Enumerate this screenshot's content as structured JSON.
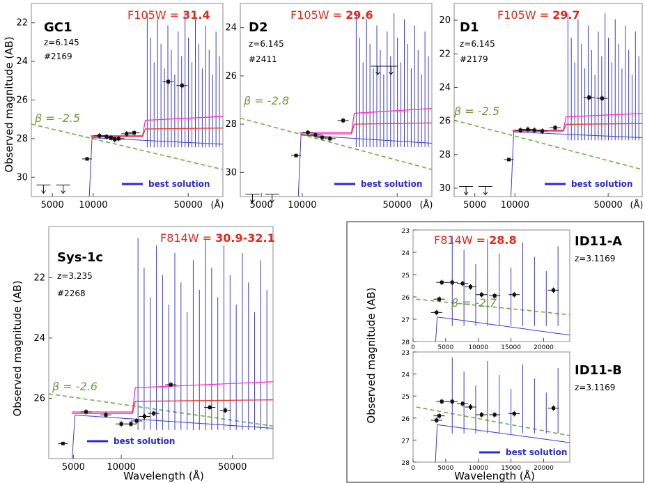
{
  "figure": {
    "ylabel": "Observed magnitude (AB)",
    "xlabel": "Wavelength (Å)",
    "legend_label": "best solution",
    "colors": {
      "model": "#3a3ad0",
      "magenta": "#ff2ad0",
      "red": "#e83a2a",
      "beta": "#6fae3a",
      "flux": "#e02a1a",
      "points": "#111111"
    }
  },
  "chart_data": [
    {
      "type": "line",
      "name": "GC1",
      "z": "z=6.145",
      "id": "#2169",
      "flux_band": "F105W = ",
      "flux_value": "31.4",
      "beta_label": "β = -2.5",
      "ylim": [
        31,
        21
      ],
      "xlim_log": [
        3500,
        90000
      ],
      "yticks": [
        "22",
        "24",
        "26",
        "28",
        "30"
      ],
      "xticks": [
        "5000",
        "10000",
        "50000",
        "(Å)"
      ],
      "points": [
        [
          11100,
          27.85
        ],
        [
          12500,
          27.9
        ],
        [
          13500,
          27.95
        ],
        [
          14400,
          28.05
        ],
        [
          15400,
          28.0
        ],
        [
          17600,
          27.75
        ],
        [
          20000,
          27.7
        ],
        [
          35600,
          25.05
        ],
        [
          45000,
          25.25
        ]
      ],
      "upper_limits": [
        [
          4300,
          30.4
        ],
        [
          6000,
          30.4
        ]
      ],
      "outlier": [
        9000,
        29.05
      ]
    },
    {
      "type": "line",
      "name": "D2",
      "z": "z=6.145",
      "id": "#2411",
      "flux_band": "F105W = ",
      "flux_value": "29.6",
      "beta_label": "β = -2.8",
      "ylim": [
        31,
        23
      ],
      "xlim_log": [
        3500,
        90000
      ],
      "yticks": [
        "24",
        "26",
        "28",
        "30"
      ],
      "xticks": [
        "5000",
        "10000",
        "50000",
        "(Å)"
      ],
      "points": [
        [
          11000,
          28.35
        ],
        [
          12500,
          28.45
        ],
        [
          14000,
          28.55
        ],
        [
          16000,
          28.6
        ],
        [
          20000,
          27.85
        ]
      ],
      "upper_limits": [
        [
          4300,
          30.9
        ],
        [
          6000,
          30.9
        ],
        [
          36000,
          25.6
        ],
        [
          45000,
          25.6
        ]
      ],
      "outlier": [
        9000,
        29.3
      ]
    },
    {
      "type": "line",
      "name": "D1",
      "z": "z=6.145",
      "id": "#2179",
      "flux_band": "F105W = ",
      "flux_value": "29.7",
      "beta_label": "β = -2.5",
      "ylim": [
        30.5,
        19
      ],
      "xlim_log": [
        3500,
        90000
      ],
      "yticks": [
        "20",
        "22",
        "24",
        "26",
        "28",
        "30"
      ],
      "xticks": [
        "5000",
        "10000",
        "50000",
        "(Å)"
      ],
      "points": [
        [
          11000,
          26.55
        ],
        [
          12500,
          26.5
        ],
        [
          14000,
          26.55
        ],
        [
          16000,
          26.6
        ],
        [
          20000,
          26.4
        ],
        [
          36000,
          24.6
        ],
        [
          45000,
          24.65
        ]
      ],
      "upper_limits": [
        [
          4300,
          29.9
        ],
        [
          6000,
          29.9
        ]
      ],
      "outlier": [
        9000,
        28.3
      ]
    },
    {
      "type": "line",
      "name": "Sys-1c",
      "z": "z=3.235",
      "id": "#2268",
      "flux_band": "F814W = ",
      "flux_value": "30.9-32.1",
      "beta_label": "β = -2.6",
      "ylim": [
        28,
        20.3
      ],
      "xlim_log": [
        3500,
        90000
      ],
      "yticks": [
        "22",
        "24",
        "26"
      ],
      "xticks": [
        "5000",
        "10000",
        "50000"
      ],
      "points": [
        [
          6000,
          26.45
        ],
        [
          8000,
          26.55
        ],
        [
          10000,
          26.85
        ],
        [
          11500,
          26.85
        ],
        [
          12500,
          26.75
        ],
        [
          14000,
          26.6
        ],
        [
          16000,
          26.5
        ],
        [
          20500,
          25.55
        ],
        [
          36000,
          26.3
        ],
        [
          45000,
          26.4
        ]
      ],
      "upper_limits": [],
      "outlier": [
        4300,
        27.5
      ]
    },
    {
      "type": "line",
      "name": "ID11-A",
      "z": "z=3.1169",
      "flux_band": "F814W = ",
      "flux_value": "28.8",
      "beta_label": "β = -2.7",
      "ylim": [
        28,
        23
      ],
      "xlim": [
        0,
        24000
      ],
      "yticks": [
        "23",
        "24",
        "25",
        "26",
        "27",
        "28"
      ],
      "xticks": [
        "0",
        "5000",
        "10000",
        "15000",
        "20000"
      ],
      "points": [
        [
          3600,
          26.7
        ],
        [
          4000,
          26.1
        ],
        [
          4400,
          25.35
        ],
        [
          6000,
          25.35
        ],
        [
          7600,
          25.4
        ],
        [
          8800,
          25.55
        ],
        [
          10500,
          25.9
        ],
        [
          12500,
          25.95
        ],
        [
          15500,
          25.9
        ],
        [
          21500,
          25.7
        ]
      ],
      "upper_limits": []
    },
    {
      "type": "line",
      "name": "ID11-B",
      "z": "z=3.1169",
      "flux_band": "",
      "flux_value": "",
      "beta_label": "",
      "ylim": [
        28,
        23
      ],
      "xlim": [
        0,
        24000
      ],
      "yticks": [
        "23",
        "24",
        "25",
        "26",
        "27",
        "28"
      ],
      "xticks": [
        "0",
        "5000",
        "10000",
        "15000",
        "20000"
      ],
      "points": [
        [
          3600,
          26.1
        ],
        [
          4000,
          25.9
        ],
        [
          4400,
          25.25
        ],
        [
          6000,
          25.25
        ],
        [
          7600,
          25.35
        ],
        [
          8800,
          25.5
        ],
        [
          10500,
          25.85
        ],
        [
          12500,
          25.85
        ],
        [
          15500,
          25.8
        ],
        [
          21500,
          25.55
        ]
      ],
      "upper_limits": []
    }
  ]
}
